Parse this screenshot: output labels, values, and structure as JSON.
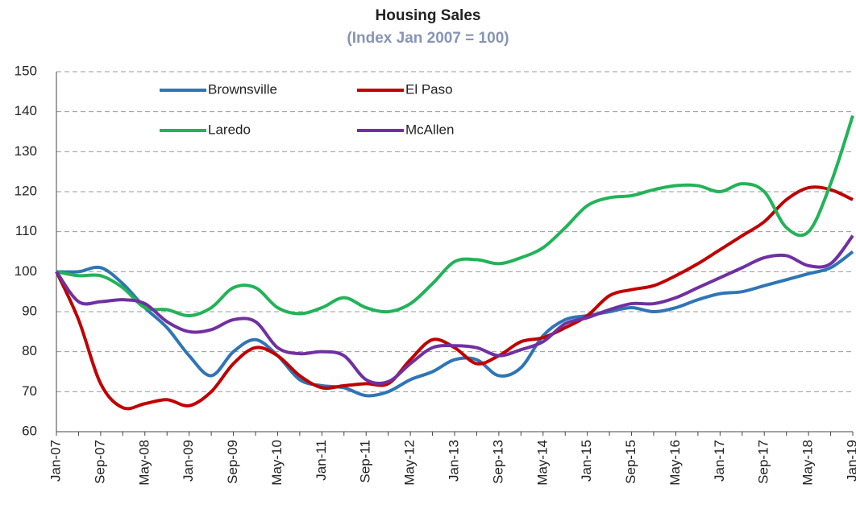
{
  "chart_data": {
    "type": "line",
    "title": "Housing Sales",
    "subtitle": "(Index Jan 2007 = 100)",
    "categories": [
      "Jan-07",
      null,
      "Sep-07",
      null,
      "May-08",
      null,
      "Jan-09",
      null,
      "Sep-09",
      null,
      "May-10",
      null,
      "Jan-11",
      null,
      "Sep-11",
      null,
      "May-12",
      null,
      "Jan-13",
      null,
      "Sep-13",
      null,
      "May-14",
      null,
      "Jan-15",
      null,
      "Sep-15",
      null,
      "May-16",
      null,
      "Jan-17",
      null,
      "Sep-17",
      null,
      "May-18",
      null,
      "Jan-19"
    ],
    "series": [
      {
        "name": "Brownsville",
        "color": "#2e75b6",
        "values": [
          100,
          100,
          101,
          97,
          91,
          86,
          79,
          74,
          80,
          83,
          79,
          73,
          71.5,
          71,
          69,
          70,
          73,
          75,
          78,
          78,
          74,
          76,
          84,
          88,
          89,
          90,
          91,
          90,
          91,
          93,
          94.5,
          95,
          96.5,
          98,
          99.5,
          101,
          105
        ]
      },
      {
        "name": "El Paso",
        "color": "#c00000",
        "values": [
          100,
          88,
          72,
          66,
          67,
          68,
          66.5,
          70,
          77,
          81,
          79,
          74,
          71,
          71.5,
          72,
          72,
          78,
          83,
          81,
          77,
          79,
          82.5,
          83.5,
          86,
          89,
          94,
          95.5,
          96.5,
          99,
          102,
          105.5,
          109,
          112.5,
          118,
          121,
          120.5,
          118
        ]
      },
      {
        "name": "Laredo",
        "color": "#22b357",
        "values": [
          100,
          99,
          99,
          96,
          91,
          90.5,
          89,
          91,
          96,
          96,
          91,
          89.5,
          91,
          93.5,
          91,
          90,
          92,
          97,
          102.5,
          103,
          102,
          103.5,
          106,
          111,
          116.5,
          118.5,
          119,
          120.5,
          121.5,
          121.5,
          120,
          122,
          120,
          111,
          110,
          122,
          139
        ]
      },
      {
        "name": "McAllen",
        "color": "#7030a0",
        "values": [
          100,
          92.5,
          92.5,
          93,
          92,
          87.5,
          85,
          85.5,
          88,
          87.5,
          81,
          79.5,
          80,
          79,
          73,
          72.5,
          77,
          81,
          81.5,
          81,
          79,
          80.5,
          82.5,
          87,
          88.5,
          90.5,
          92,
          92,
          93.5,
          96,
          98.5,
          101,
          103.5,
          104,
          101.5,
          102,
          109
        ]
      }
    ],
    "ylim": [
      60,
      150
    ],
    "yticks": [
      60,
      70,
      80,
      90,
      100,
      110,
      120,
      130,
      140,
      150
    ],
    "grid": true
  }
}
